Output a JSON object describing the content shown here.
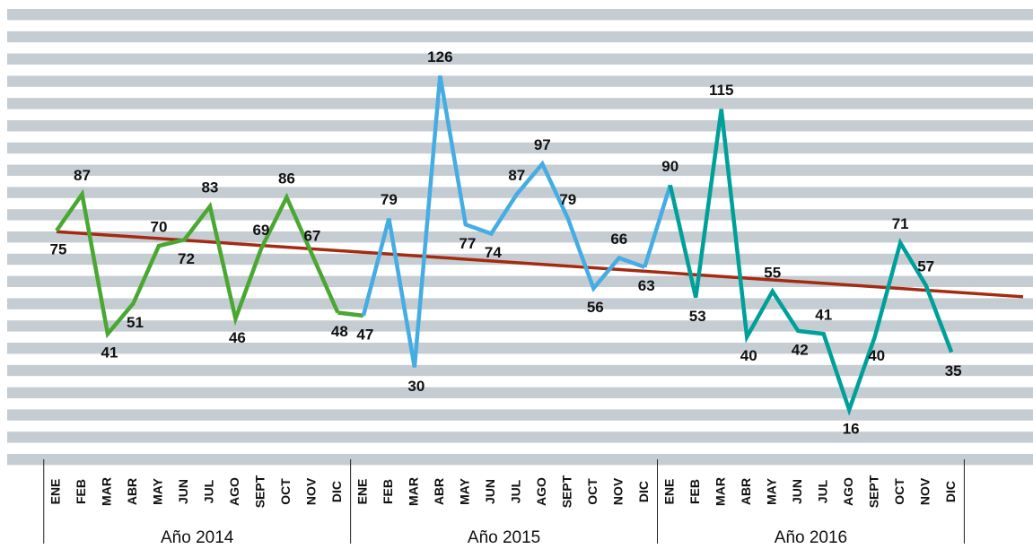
{
  "chart_data": {
    "type": "line",
    "categories": [
      "ENE",
      "FEB",
      "MAR",
      "ABR",
      "MAY",
      "JUN",
      "JUL",
      "AGO",
      "SEPT",
      "OCT",
      "NOV",
      "DIC",
      "ENE",
      "FEB",
      "MAR",
      "ABR",
      "MAY",
      "JUN",
      "JUL",
      "AGO",
      "SEPT",
      "OCT",
      "NOV",
      "DIC",
      "ENE",
      "FEB",
      "MAR",
      "ABR",
      "MAY",
      "JUN",
      "JUL",
      "AGO",
      "SEPT",
      "OCT",
      "NOV",
      "DIC"
    ],
    "groups": [
      "Año 2014",
      "Año 2015",
      "Año 2016"
    ],
    "series": [
      {
        "name": "Año 2014",
        "color": "#4aa832",
        "values": [
          75,
          87,
          41,
          51,
          70,
          72,
          83,
          46,
          69,
          86,
          67,
          48,
          null,
          null,
          null,
          null,
          null,
          null,
          null,
          null,
          null,
          null,
          null,
          null,
          null,
          null,
          null,
          null,
          null,
          null,
          null,
          null,
          null,
          null,
          null,
          null
        ]
      },
      {
        "name": "Año 2015",
        "color": "#45ade3",
        "values": [
          null,
          null,
          null,
          null,
          null,
          null,
          null,
          null,
          null,
          null,
          null,
          null,
          47,
          79,
          30,
          126,
          77,
          74,
          87,
          97,
          79,
          56,
          66,
          63,
          null,
          null,
          null,
          null,
          null,
          null,
          null,
          null,
          null,
          null,
          null,
          null
        ]
      },
      {
        "name": "Año 2016",
        "color": "#00a09a",
        "values": [
          null,
          null,
          null,
          null,
          null,
          null,
          null,
          null,
          null,
          null,
          null,
          null,
          null,
          null,
          null,
          null,
          null,
          null,
          null,
          null,
          null,
          null,
          null,
          null,
          90,
          53,
          115,
          40,
          55,
          42,
          41,
          16,
          40,
          71,
          57,
          35
        ]
      }
    ],
    "ylim": [
      0,
      148
    ],
    "grid": true,
    "trendline": true,
    "trend_color": "#a52a12",
    "legend": false
  }
}
